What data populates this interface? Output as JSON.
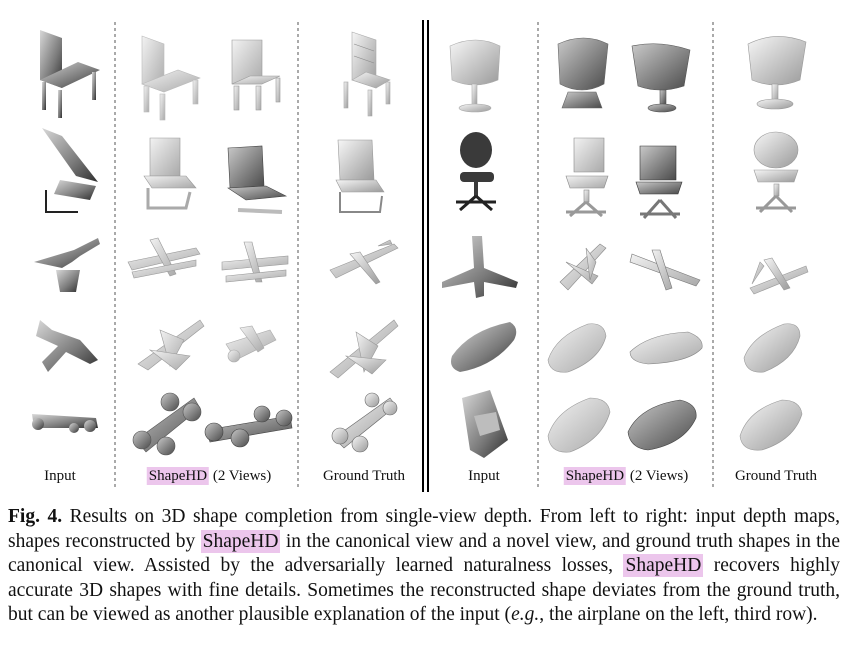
{
  "figure": {
    "column_labels": {
      "left_input": "Input",
      "left_method_name": "ShapeHD",
      "left_method_suffix": " (2 Views)",
      "left_gt": "Ground Truth",
      "right_input": "Input",
      "right_method_name": "ShapeHD",
      "right_method_suffix": " (2 Views)",
      "right_gt": "Ground Truth"
    },
    "highlight_color": "#ecc6ec"
  },
  "caption": {
    "label": "Fig. 4.",
    "part1": " Results on 3D shape completion from single-view depth. From left to right: input depth maps, shapes reconstructed by ",
    "method1": "ShapeHD",
    "part2": " in the canonical view and a novel view, and ground truth shapes in the canonical view. Assisted by the adversarially learned naturalness losses, ",
    "method2": "ShapeHD",
    "part3": " recovers highly accurate 3D shapes with fine details. Sometimes the reconstructed shape deviates from the ground truth, but can be viewed as another plausible explanation of the input (",
    "eg": "e.g.",
    "part4": ", the airplane on the left, third row)."
  }
}
